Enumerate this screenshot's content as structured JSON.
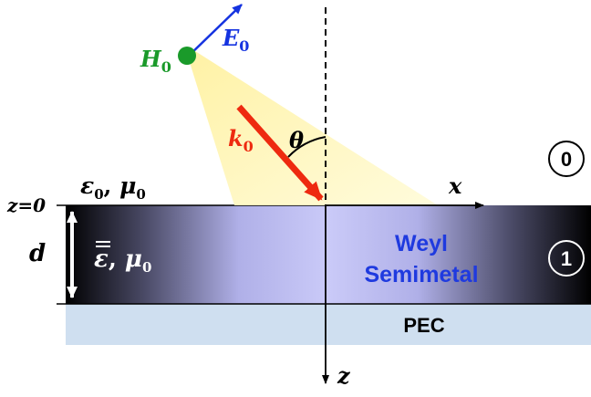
{
  "labels": {
    "E0": "E",
    "E0_sub": "0",
    "H0": "H",
    "H0_sub": "0",
    "k0": "k",
    "k0_sub": "0",
    "theta": "θ",
    "x_axis": "x",
    "z_axis": "z",
    "z_eq_0": "z=0",
    "thickness": "d",
    "region0_eps": "ε",
    "region0_eps_sub": "0",
    "region0_mu": "μ",
    "region0_mu_sub": "0",
    "region1_eps": "ε",
    "region1_mu": "μ",
    "region1_mu_sub": "0",
    "region0_number": "0",
    "region1_number": "1",
    "weyl_line1": "Weyl",
    "weyl_line2": "Semimetal",
    "pec": "PEC"
  },
  "colors": {
    "e_field_arrow": "#1533e0",
    "h_field_dot": "#1a9a2a",
    "k_vector_arrow": "#ee2a10",
    "beam": "#fff6a8",
    "slab_center": "#c8c8f5",
    "slab_edge": "#000000",
    "pec": "#cfdff0",
    "weyl_text": "#1f3adf"
  }
}
